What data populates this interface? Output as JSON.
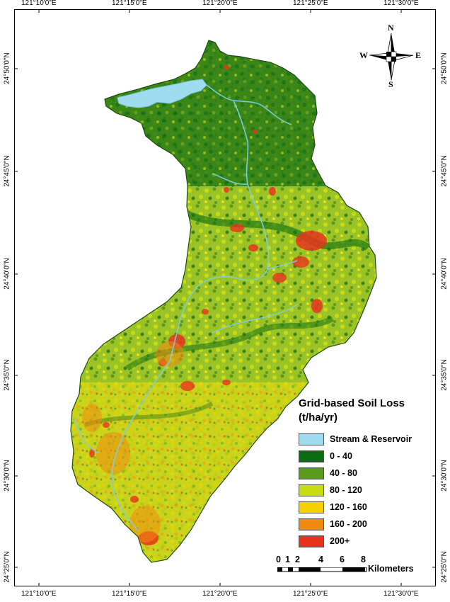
{
  "axes": {
    "longitudes": [
      "121°10'0\"E",
      "121°15'0\"E",
      "121°20'0\"E",
      "121°25'0\"E",
      "121°30'0\"E"
    ],
    "latitudes": [
      "24°50'0\"N",
      "24°45'0\"N",
      "24°40'0\"N",
      "24°35'0\"N",
      "24°30'0\"N",
      "24°25'0\"N"
    ]
  },
  "north_arrow": {
    "n": "N",
    "s": "S",
    "e": "E",
    "w": "W"
  },
  "legend": {
    "title_line1": "Grid-based Soil Loss",
    "title_line2": "(t/ha/yr)",
    "items": [
      {
        "label": "Stream & Reservoir",
        "color": "#9fdcf0"
      },
      {
        "label": "0 - 40",
        "color": "#0a6b12"
      },
      {
        "label": "40 - 80",
        "color": "#5c9a1e"
      },
      {
        "label": "80 - 120",
        "color": "#c8dc12"
      },
      {
        "label": "120 - 160",
        "color": "#f5d200"
      },
      {
        "label": "160 - 200",
        "color": "#f08a10"
      },
      {
        "label": "200+",
        "color": "#e8321e"
      }
    ]
  },
  "scale": {
    "ticks": [
      "0",
      "1",
      "2",
      "4",
      "6",
      "8"
    ],
    "unit": "Kilometers"
  }
}
